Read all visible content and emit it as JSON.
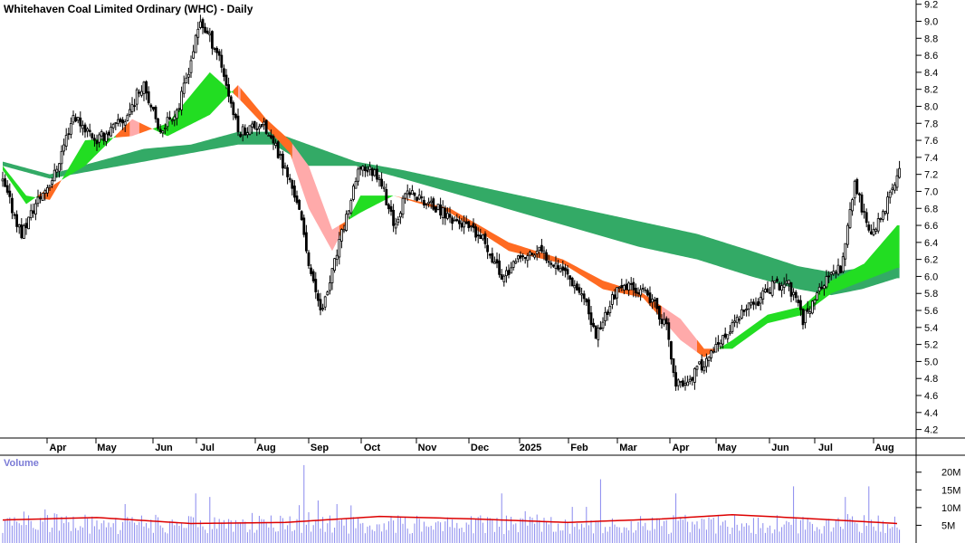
{
  "title": "Whitehaven Coal Limited Ordinary (WHC) - Daily",
  "volume_title": "Volume",
  "colors": {
    "candle": "#000000",
    "ribbon_short_up": "#22dd22",
    "ribbon_short_down": "#ff6b22",
    "ribbon_short_pink": "#ffaaaa",
    "ribbon_long_up": "#33aa66",
    "ribbon_long_down": "#ee5533",
    "ribbon_long_pink": "#f08080",
    "volume_bar": "#8888ee",
    "volume_ma": "#dd0000",
    "grid": "#cccccc"
  },
  "chart_data": [
    {
      "type": "candlestick",
      "title": "Whitehaven Coal Limited Ordinary (WHC) - Daily",
      "y_ticks": [
        "9.2",
        "9.0",
        "8.8",
        "8.6",
        "8.4",
        "8.2",
        "8.0",
        "7.8",
        "7.6",
        "7.4",
        "7.2",
        "7.0",
        "6.8",
        "6.6",
        "6.4",
        "6.2",
        "6.0",
        "5.8",
        "5.6",
        "5.4",
        "5.2",
        "5.0",
        "4.8",
        "4.6",
        "4.4",
        "4.2"
      ],
      "ylim": [
        4.1,
        9.25
      ],
      "x_ticks": [
        "Apr",
        "May",
        "Jun",
        "Jul",
        "Aug",
        "Sep",
        "Oct",
        "Nov",
        "Dec",
        "2025",
        "Feb",
        "Mar",
        "Apr",
        "May",
        "Jun",
        "Jul",
        "Aug"
      ],
      "price_keypoints": [
        {
          "t": 0,
          "v": 7.1
        },
        {
          "t": 8,
          "v": 6.5
        },
        {
          "t": 14,
          "v": 6.85
        },
        {
          "t": 22,
          "v": 7.2
        },
        {
          "t": 30,
          "v": 7.9
        },
        {
          "t": 40,
          "v": 7.6
        },
        {
          "t": 52,
          "v": 7.85
        },
        {
          "t": 60,
          "v": 8.3
        },
        {
          "t": 66,
          "v": 7.7
        },
        {
          "t": 75,
          "v": 8.0
        },
        {
          "t": 84,
          "v": 9.0
        },
        {
          "t": 92,
          "v": 8.6
        },
        {
          "t": 100,
          "v": 7.7
        },
        {
          "t": 110,
          "v": 7.8
        },
        {
          "t": 118,
          "v": 7.4
        },
        {
          "t": 125,
          "v": 6.9
        },
        {
          "t": 132,
          "v": 5.9
        },
        {
          "t": 136,
          "v": 5.6
        },
        {
          "t": 145,
          "v": 6.6
        },
        {
          "t": 152,
          "v": 7.3
        },
        {
          "t": 160,
          "v": 7.2
        },
        {
          "t": 166,
          "v": 6.6
        },
        {
          "t": 172,
          "v": 7.0
        },
        {
          "t": 184,
          "v": 6.8
        },
        {
          "t": 196,
          "v": 6.6
        },
        {
          "t": 205,
          "v": 6.4
        },
        {
          "t": 212,
          "v": 6.0
        },
        {
          "t": 220,
          "v": 6.2
        },
        {
          "t": 228,
          "v": 6.3
        },
        {
          "t": 238,
          "v": 6.1
        },
        {
          "t": 246,
          "v": 5.8
        },
        {
          "t": 252,
          "v": 5.3
        },
        {
          "t": 260,
          "v": 5.8
        },
        {
          "t": 268,
          "v": 5.9
        },
        {
          "t": 276,
          "v": 5.7
        },
        {
          "t": 282,
          "v": 5.4
        },
        {
          "t": 286,
          "v": 4.7
        },
        {
          "t": 292,
          "v": 4.8
        },
        {
          "t": 298,
          "v": 5.0
        },
        {
          "t": 305,
          "v": 5.2
        },
        {
          "t": 312,
          "v": 5.5
        },
        {
          "t": 320,
          "v": 5.7
        },
        {
          "t": 328,
          "v": 5.9
        },
        {
          "t": 334,
          "v": 5.9
        },
        {
          "t": 340,
          "v": 5.5
        },
        {
          "t": 348,
          "v": 5.9
        },
        {
          "t": 356,
          "v": 6.1
        },
        {
          "t": 362,
          "v": 7.1
        },
        {
          "t": 368,
          "v": 6.5
        },
        {
          "t": 374,
          "v": 6.7
        },
        {
          "t": 380,
          "v": 7.2
        }
      ],
      "ribbon_short_keypoints": [
        {
          "t": 0,
          "a": 7.3,
          "b": 7.25
        },
        {
          "t": 10,
          "a": 6.95,
          "b": 6.85
        },
        {
          "t": 20,
          "a": 6.9,
          "b": 7.05
        },
        {
          "t": 35,
          "a": 7.6,
          "b": 7.3
        },
        {
          "t": 55,
          "a": 7.65,
          "b": 7.85
        },
        {
          "t": 70,
          "a": 7.8,
          "b": 7.65
        },
        {
          "t": 88,
          "a": 8.4,
          "b": 7.9
        },
        {
          "t": 100,
          "a": 8.1,
          "b": 8.25
        },
        {
          "t": 112,
          "a": 7.75,
          "b": 7.85
        },
        {
          "t": 122,
          "a": 7.45,
          "b": 7.6
        },
        {
          "t": 130,
          "a": 6.8,
          "b": 7.3
        },
        {
          "t": 140,
          "a": 6.3,
          "b": 6.55
        },
        {
          "t": 152,
          "a": 6.95,
          "b": 6.75
        },
        {
          "t": 166,
          "a": 6.95,
          "b": 6.95
        },
        {
          "t": 190,
          "a": 6.75,
          "b": 6.8
        },
        {
          "t": 215,
          "a": 6.3,
          "b": 6.4
        },
        {
          "t": 238,
          "a": 6.15,
          "b": 6.2
        },
        {
          "t": 255,
          "a": 5.85,
          "b": 5.95
        },
        {
          "t": 272,
          "a": 5.75,
          "b": 5.8
        },
        {
          "t": 288,
          "a": 5.25,
          "b": 5.5
        },
        {
          "t": 298,
          "a": 5.05,
          "b": 5.15
        },
        {
          "t": 310,
          "a": 5.25,
          "b": 5.15
        },
        {
          "t": 325,
          "a": 5.55,
          "b": 5.45
        },
        {
          "t": 340,
          "a": 5.65,
          "b": 5.55
        },
        {
          "t": 352,
          "a": 5.95,
          "b": 5.8
        },
        {
          "t": 366,
          "a": 6.15,
          "b": 5.95
        },
        {
          "t": 380,
          "a": 6.6,
          "b": 6.1
        }
      ],
      "ribbon_long_keypoints": [
        {
          "t": 0,
          "a": 7.35,
          "b": 7.3
        },
        {
          "t": 20,
          "a": 7.2,
          "b": 7.15
        },
        {
          "t": 40,
          "a": 7.35,
          "b": 7.25
        },
        {
          "t": 60,
          "a": 7.5,
          "b": 7.35
        },
        {
          "t": 80,
          "a": 7.55,
          "b": 7.45
        },
        {
          "t": 100,
          "a": 7.7,
          "b": 7.55
        },
        {
          "t": 115,
          "a": 7.7,
          "b": 7.55
        },
        {
          "t": 130,
          "a": 7.55,
          "b": 7.3
        },
        {
          "t": 150,
          "a": 7.35,
          "b": 7.3
        },
        {
          "t": 170,
          "a": 7.25,
          "b": 7.15
        },
        {
          "t": 195,
          "a": 7.1,
          "b": 6.95
        },
        {
          "t": 220,
          "a": 6.95,
          "b": 6.75
        },
        {
          "t": 245,
          "a": 6.8,
          "b": 6.55
        },
        {
          "t": 270,
          "a": 6.65,
          "b": 6.35
        },
        {
          "t": 295,
          "a": 6.5,
          "b": 6.2
        },
        {
          "t": 318,
          "a": 6.3,
          "b": 6.0
        },
        {
          "t": 338,
          "a": 6.12,
          "b": 5.85
        },
        {
          "t": 352,
          "a": 6.05,
          "b": 5.78
        },
        {
          "t": 365,
          "a": 6.1,
          "b": 5.85
        },
        {
          "t": 380,
          "a": 6.15,
          "b": 5.98
        }
      ]
    },
    {
      "type": "bar",
      "title": "Volume",
      "y_ticks": [
        "20M",
        "15M",
        "10M",
        "5M"
      ],
      "ylim": [
        0,
        23
      ],
      "volume_ma_keypoints": [
        {
          "t": 0,
          "v": 6.5
        },
        {
          "t": 40,
          "v": 7.2
        },
        {
          "t": 80,
          "v": 5.5
        },
        {
          "t": 120,
          "v": 5.8
        },
        {
          "t": 160,
          "v": 7.5
        },
        {
          "t": 200,
          "v": 6.8
        },
        {
          "t": 240,
          "v": 5.8
        },
        {
          "t": 280,
          "v": 6.8
        },
        {
          "t": 310,
          "v": 8.0
        },
        {
          "t": 340,
          "v": 7.0
        },
        {
          "t": 380,
          "v": 5.5
        }
      ],
      "volume_spikes": [
        {
          "t": 82,
          "v": 14
        },
        {
          "t": 88,
          "v": 13
        },
        {
          "t": 128,
          "v": 22
        },
        {
          "t": 134,
          "v": 12
        },
        {
          "t": 142,
          "v": 11
        },
        {
          "t": 212,
          "v": 14
        },
        {
          "t": 254,
          "v": 18
        },
        {
          "t": 286,
          "v": 14
        },
        {
          "t": 336,
          "v": 16
        },
        {
          "t": 358,
          "v": 13
        },
        {
          "t": 368,
          "v": 16
        }
      ]
    }
  ]
}
